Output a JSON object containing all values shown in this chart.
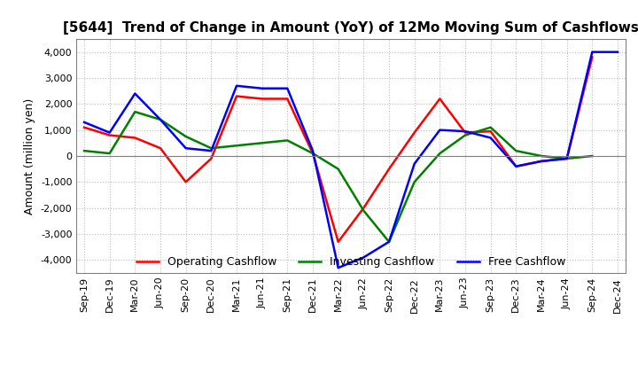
{
  "title": "[5644]  Trend of Change in Amount (YoY) of 12Mo Moving Sum of Cashflows",
  "ylabel": "Amount (million yen)",
  "x_labels": [
    "Sep-19",
    "Dec-19",
    "Mar-20",
    "Jun-20",
    "Sep-20",
    "Dec-20",
    "Mar-21",
    "Jun-21",
    "Sep-21",
    "Dec-21",
    "Mar-22",
    "Jun-22",
    "Sep-22",
    "Dec-22",
    "Mar-23",
    "Jun-23",
    "Sep-23",
    "Dec-23",
    "Mar-24",
    "Jun-24",
    "Sep-24",
    "Dec-24"
  ],
  "operating": [
    1100,
    800,
    700,
    300,
    -1000,
    -100,
    2300,
    2200,
    2200,
    100,
    -3300,
    -2000,
    -500,
    900,
    2200,
    900,
    950,
    -400,
    -200,
    -100,
    3800,
    null
  ],
  "investing": [
    200,
    100,
    1700,
    1400,
    750,
    300,
    400,
    500,
    600,
    100,
    -500,
    -2100,
    -3300,
    -1000,
    100,
    800,
    1100,
    200,
    0,
    -100,
    0,
    null
  ],
  "free": [
    1300,
    900,
    2400,
    1400,
    300,
    200,
    2700,
    2600,
    2600,
    200,
    -4300,
    -3900,
    -3300,
    -300,
    1000,
    950,
    700,
    -400,
    -200,
    -100,
    4000,
    4000
  ],
  "ylim": [
    -4500,
    4500
  ],
  "yticks": [
    -4000,
    -3000,
    -2000,
    -1000,
    0,
    1000,
    2000,
    3000,
    4000
  ],
  "operating_color": "#ff0000",
  "investing_color": "#008000",
  "free_color": "#0000ff",
  "background_color": "#ffffff",
  "grid_color": "#bbbbbb",
  "title_fontsize": 11,
  "axis_fontsize": 8,
  "ylabel_fontsize": 9,
  "linewidth": 1.8
}
